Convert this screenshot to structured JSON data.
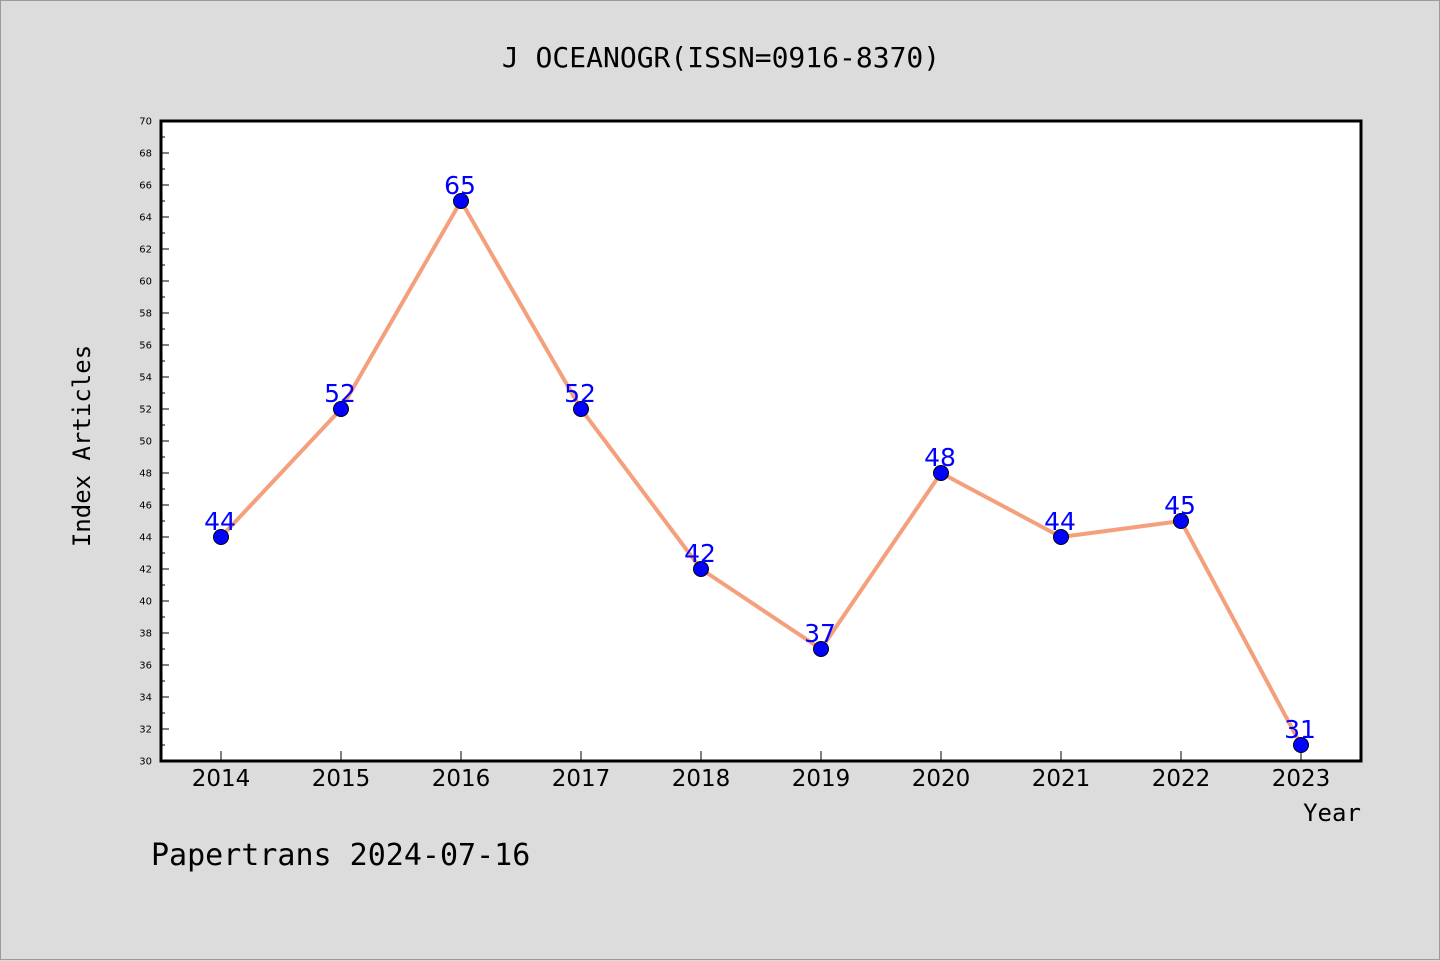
{
  "chart_data": {
    "type": "line",
    "title": "J OCEANOGR(ISSN=0916-8370)",
    "xlabel": "Year",
    "ylabel": "Index Articles",
    "categories": [
      "2014",
      "2015",
      "2016",
      "2017",
      "2018",
      "2019",
      "2020",
      "2021",
      "2022",
      "2023"
    ],
    "series": [
      {
        "values": [
          44,
          52,
          65,
          52,
          42,
          37,
          48,
          44,
          45,
          31
        ]
      }
    ],
    "data_labels": [
      "44",
      "52",
      "65",
      "52",
      "42",
      "37",
      "48",
      "44",
      "45",
      "31"
    ],
    "ylim": [
      30,
      70
    ],
    "yticks": [
      "30",
      "32",
      "34",
      "36",
      "38",
      "40",
      "42",
      "44",
      "46",
      "48",
      "50",
      "52",
      "54",
      "56",
      "58",
      "60",
      "62",
      "64",
      "66",
      "68",
      "70"
    ],
    "grid": false,
    "line_color": "#f4a07c",
    "marker_color": "#0000ff",
    "label_color": "#0000ff"
  },
  "footer": {
    "text": "Papertrans 2024-07-16"
  }
}
